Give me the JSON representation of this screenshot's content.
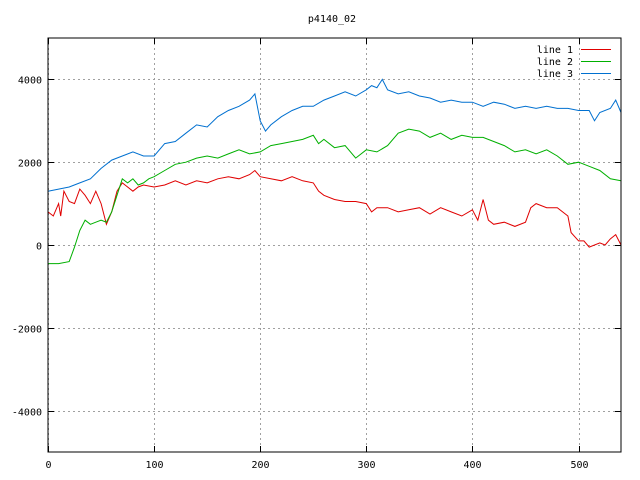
{
  "chart_data": {
    "type": "line",
    "title": "p4140_02",
    "xlabel": "",
    "ylabel": "",
    "xlim": [
      0,
      540
    ],
    "ylim": [
      -5000,
      5000
    ],
    "xticks": [
      0,
      100,
      200,
      300,
      400,
      500
    ],
    "yticks": [
      -4000,
      -2000,
      0,
      2000,
      4000
    ],
    "grid": true,
    "legend_position": "top-right",
    "series": [
      {
        "name": "line 1",
        "color": "#e00000",
        "points": [
          [
            0,
            800
          ],
          [
            5,
            700
          ],
          [
            10,
            1000
          ],
          [
            12,
            700
          ],
          [
            15,
            1300
          ],
          [
            20,
            1050
          ],
          [
            25,
            1000
          ],
          [
            30,
            1350
          ],
          [
            35,
            1200
          ],
          [
            40,
            1000
          ],
          [
            45,
            1300
          ],
          [
            50,
            1000
          ],
          [
            55,
            500
          ],
          [
            60,
            800
          ],
          [
            65,
            1300
          ],
          [
            70,
            1500
          ],
          [
            75,
            1400
          ],
          [
            80,
            1300
          ],
          [
            85,
            1400
          ],
          [
            90,
            1450
          ],
          [
            100,
            1400
          ],
          [
            110,
            1450
          ],
          [
            120,
            1550
          ],
          [
            130,
            1450
          ],
          [
            140,
            1550
          ],
          [
            150,
            1500
          ],
          [
            160,
            1600
          ],
          [
            170,
            1650
          ],
          [
            180,
            1600
          ],
          [
            190,
            1700
          ],
          [
            195,
            1800
          ],
          [
            200,
            1650
          ],
          [
            210,
            1600
          ],
          [
            220,
            1550
          ],
          [
            230,
            1650
          ],
          [
            240,
            1550
          ],
          [
            250,
            1500
          ],
          [
            255,
            1300
          ],
          [
            260,
            1200
          ],
          [
            270,
            1100
          ],
          [
            280,
            1050
          ],
          [
            290,
            1050
          ],
          [
            300,
            1000
          ],
          [
            305,
            800
          ],
          [
            310,
            900
          ],
          [
            320,
            900
          ],
          [
            330,
            800
          ],
          [
            340,
            850
          ],
          [
            350,
            900
          ],
          [
            360,
            750
          ],
          [
            370,
            900
          ],
          [
            380,
            800
          ],
          [
            390,
            700
          ],
          [
            400,
            850
          ],
          [
            405,
            600
          ],
          [
            410,
            1100
          ],
          [
            415,
            600
          ],
          [
            420,
            500
          ],
          [
            430,
            550
          ],
          [
            440,
            450
          ],
          [
            450,
            550
          ],
          [
            455,
            900
          ],
          [
            460,
            1000
          ],
          [
            470,
            900
          ],
          [
            480,
            900
          ],
          [
            490,
            700
          ],
          [
            493,
            300
          ],
          [
            500,
            100
          ],
          [
            505,
            100
          ],
          [
            510,
            -50
          ],
          [
            520,
            50
          ],
          [
            525,
            0
          ],
          [
            530,
            150
          ],
          [
            535,
            250
          ],
          [
            540,
            0
          ]
        ]
      },
      {
        "name": "line 2",
        "color": "#00b000",
        "points": [
          [
            0,
            -450
          ],
          [
            10,
            -450
          ],
          [
            20,
            -400
          ],
          [
            25,
            -50
          ],
          [
            30,
            350
          ],
          [
            35,
            600
          ],
          [
            40,
            500
          ],
          [
            45,
            550
          ],
          [
            50,
            600
          ],
          [
            55,
            550
          ],
          [
            60,
            800
          ],
          [
            65,
            1200
          ],
          [
            70,
            1600
          ],
          [
            75,
            1500
          ],
          [
            80,
            1600
          ],
          [
            85,
            1450
          ],
          [
            90,
            1500
          ],
          [
            95,
            1600
          ],
          [
            100,
            1650
          ],
          [
            110,
            1800
          ],
          [
            120,
            1950
          ],
          [
            130,
            2000
          ],
          [
            140,
            2100
          ],
          [
            150,
            2150
          ],
          [
            160,
            2100
          ],
          [
            170,
            2200
          ],
          [
            180,
            2300
          ],
          [
            190,
            2200
          ],
          [
            200,
            2250
          ],
          [
            210,
            2400
          ],
          [
            220,
            2450
          ],
          [
            230,
            2500
          ],
          [
            240,
            2550
          ],
          [
            250,
            2650
          ],
          [
            255,
            2450
          ],
          [
            260,
            2550
          ],
          [
            270,
            2350
          ],
          [
            280,
            2400
          ],
          [
            290,
            2100
          ],
          [
            300,
            2300
          ],
          [
            310,
            2250
          ],
          [
            320,
            2400
          ],
          [
            330,
            2700
          ],
          [
            340,
            2800
          ],
          [
            350,
            2750
          ],
          [
            360,
            2600
          ],
          [
            370,
            2700
          ],
          [
            380,
            2550
          ],
          [
            390,
            2650
          ],
          [
            400,
            2600
          ],
          [
            410,
            2600
          ],
          [
            420,
            2500
          ],
          [
            430,
            2400
          ],
          [
            440,
            2250
          ],
          [
            450,
            2300
          ],
          [
            460,
            2200
          ],
          [
            470,
            2300
          ],
          [
            480,
            2150
          ],
          [
            490,
            1950
          ],
          [
            500,
            2000
          ],
          [
            510,
            1900
          ],
          [
            520,
            1800
          ],
          [
            530,
            1600
          ],
          [
            540,
            1550
          ]
        ]
      },
      {
        "name": "line 3",
        "color": "#0070d0",
        "points": [
          [
            0,
            1300
          ],
          [
            10,
            1350
          ],
          [
            20,
            1400
          ],
          [
            30,
            1500
          ],
          [
            40,
            1600
          ],
          [
            50,
            1850
          ],
          [
            60,
            2050
          ],
          [
            70,
            2150
          ],
          [
            80,
            2250
          ],
          [
            90,
            2150
          ],
          [
            100,
            2150
          ],
          [
            110,
            2450
          ],
          [
            120,
            2500
          ],
          [
            130,
            2700
          ],
          [
            140,
            2900
          ],
          [
            150,
            2850
          ],
          [
            160,
            3100
          ],
          [
            170,
            3250
          ],
          [
            180,
            3350
          ],
          [
            190,
            3500
          ],
          [
            195,
            3650
          ],
          [
            200,
            3000
          ],
          [
            205,
            2750
          ],
          [
            210,
            2900
          ],
          [
            220,
            3100
          ],
          [
            230,
            3250
          ],
          [
            240,
            3350
          ],
          [
            250,
            3350
          ],
          [
            260,
            3500
          ],
          [
            270,
            3600
          ],
          [
            280,
            3700
          ],
          [
            290,
            3600
          ],
          [
            300,
            3750
          ],
          [
            305,
            3850
          ],
          [
            310,
            3800
          ],
          [
            315,
            4000
          ],
          [
            320,
            3750
          ],
          [
            330,
            3650
          ],
          [
            340,
            3700
          ],
          [
            350,
            3600
          ],
          [
            360,
            3550
          ],
          [
            370,
            3450
          ],
          [
            380,
            3500
          ],
          [
            390,
            3450
          ],
          [
            400,
            3450
          ],
          [
            410,
            3350
          ],
          [
            420,
            3450
          ],
          [
            430,
            3400
          ],
          [
            440,
            3300
          ],
          [
            450,
            3350
          ],
          [
            460,
            3300
          ],
          [
            470,
            3350
          ],
          [
            480,
            3300
          ],
          [
            490,
            3300
          ],
          [
            500,
            3250
          ],
          [
            510,
            3250
          ],
          [
            515,
            3000
          ],
          [
            520,
            3200
          ],
          [
            530,
            3300
          ],
          [
            535,
            3500
          ],
          [
            540,
            3200
          ]
        ]
      }
    ]
  }
}
